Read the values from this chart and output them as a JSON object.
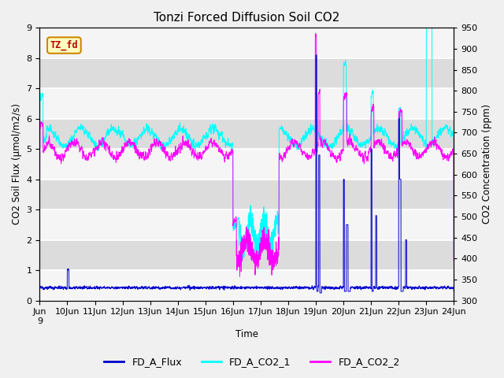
{
  "title": "Tonzi Forced Diffusion Soil CO2",
  "xlabel": "Time",
  "ylabel_left": "CO2 Soil Flux (μmol/m2/s)",
  "ylabel_right": "CO2 Concentration (ppm)",
  "ylim_left": [
    0.0,
    9.0
  ],
  "ylim_right": [
    300,
    950
  ],
  "yticks_left": [
    0.0,
    1.0,
    2.0,
    3.0,
    4.0,
    5.0,
    6.0,
    7.0,
    8.0,
    9.0
  ],
  "yticks_right": [
    300,
    350,
    400,
    450,
    500,
    550,
    600,
    650,
    700,
    750,
    800,
    850,
    900,
    950
  ],
  "n_points": 3600,
  "flux_color": "#0000CD",
  "co2_1_color": "#00FFFF",
  "co2_2_color": "#FF00FF",
  "legend_labels": [
    "FD_A_Flux",
    "FD_A_CO2_1",
    "FD_A_CO2_2"
  ],
  "label_box_text": "TZ_fd",
  "label_box_facecolor": "#FFFFC0",
  "label_box_edgecolor": "#CC8800",
  "label_text_color": "#BB0000",
  "fig_facecolor": "#F0F0F0",
  "plot_facecolor": "#E8E8E8",
  "band_color_light": "#F5F5F5",
  "band_color_dark": "#DCDCDC",
  "title_fontsize": 11,
  "tick_label_fontsize": 8,
  "axis_label_fontsize": 8.5,
  "legend_fontsize": 9
}
